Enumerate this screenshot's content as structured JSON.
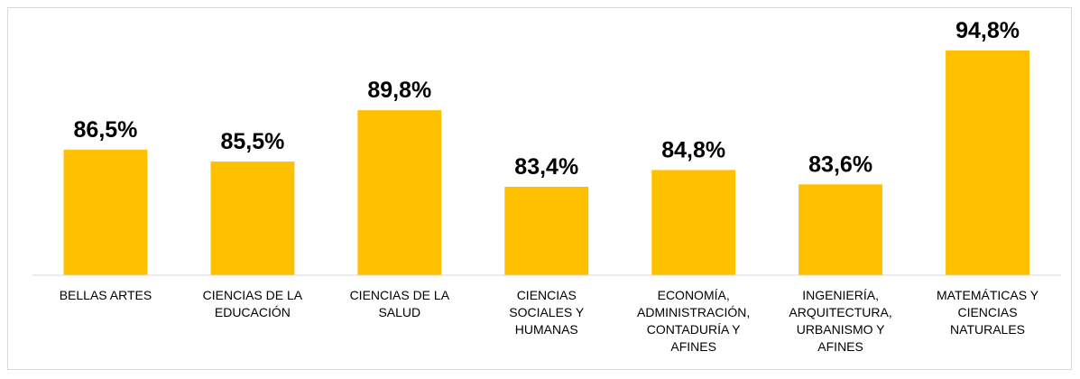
{
  "chart_data": {
    "type": "bar",
    "categories": [
      "BELLAS ARTES",
      "CIENCIAS DE LA EDUCACIÓN",
      "CIENCIAS DE LA SALUD",
      "CIENCIAS SOCIALES Y HUMANAS",
      "ECONOMÍA, ADMINISTRACIÓN, CONTADURÍA Y AFINES",
      "INGENIERÍA, ARQUITECTURA, URBANISMO Y AFINES",
      "MATEMÁTICAS Y CIENCIAS NATURALES"
    ],
    "values": [
      86.5,
      85.5,
      89.8,
      83.4,
      84.8,
      83.6,
      94.8
    ],
    "value_labels": [
      "86,5%",
      "85,5%",
      "89,8%",
      "83,4%",
      "84,8%",
      "83,6%",
      "94,8%"
    ],
    "color": "#ffc000",
    "ylim": [
      76,
      96
    ]
  }
}
